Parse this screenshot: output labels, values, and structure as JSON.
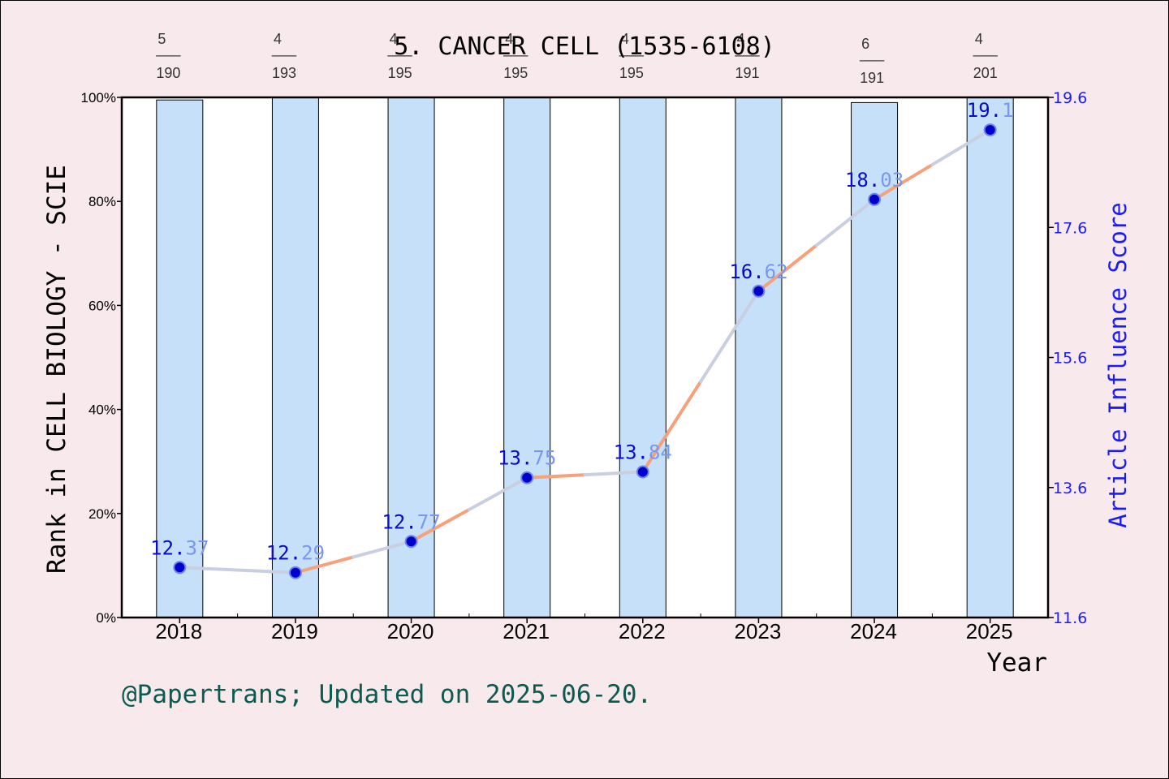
{
  "chart_data": {
    "type": "bar+line",
    "title": "5. CANCER CELL (1535-6108)",
    "xlabel": "Year",
    "ylabel_left": "Rank in CELL BIOLOGY - SCIE",
    "ylabel_right": "Article Influence Score",
    "categories": [
      "2018",
      "2019",
      "2020",
      "2021",
      "2022",
      "2023",
      "2024",
      "2025"
    ],
    "rank_bars": {
      "values": [
        99.5,
        100,
        100,
        100,
        100,
        100,
        99.0,
        100
      ],
      "ylim": [
        0,
        100
      ],
      "yticks": [
        "0%",
        "20%",
        "40%",
        "60%",
        "80%",
        "100%"
      ],
      "color": "#c5e0f8"
    },
    "rank_labels": [
      {
        "rank": "5",
        "total": "190"
      },
      {
        "rank": "4",
        "total": "193"
      },
      {
        "rank": "4",
        "total": "195"
      },
      {
        "rank": "4",
        "total": "195"
      },
      {
        "rank": "4",
        "total": "195"
      },
      {
        "rank": "4",
        "total": "191"
      },
      {
        "rank": "6",
        "total": "191"
      },
      {
        "rank": "4",
        "total": "201"
      }
    ],
    "fraction_bar": "___",
    "series": [
      {
        "name": "Article Influence Score",
        "values": [
          12.37,
          12.29,
          12.77,
          13.75,
          13.84,
          16.62,
          18.03,
          19.1
        ],
        "labels": [
          "12.37",
          "12.29",
          "12.77",
          "13.75",
          "13.84",
          "16.62",
          "18.03",
          "19.1"
        ]
      }
    ],
    "ylim_right": [
      11.6,
      19.6
    ],
    "yticks_right": [
      "11.6",
      "13.6",
      "15.6",
      "17.6",
      "19.6"
    ],
    "footer": "@Papertrans; Updated on 2025-06-20.",
    "colors": {
      "background": "#f8e9ec",
      "plot_bg": "#ffffff",
      "bar": "#c5e0f8",
      "line_up": "#f7a07a",
      "line_down": "#c9cfe0",
      "marker": "#0000cc",
      "right_axis": "#1a1aff",
      "footer": "#0d5a50"
    }
  }
}
